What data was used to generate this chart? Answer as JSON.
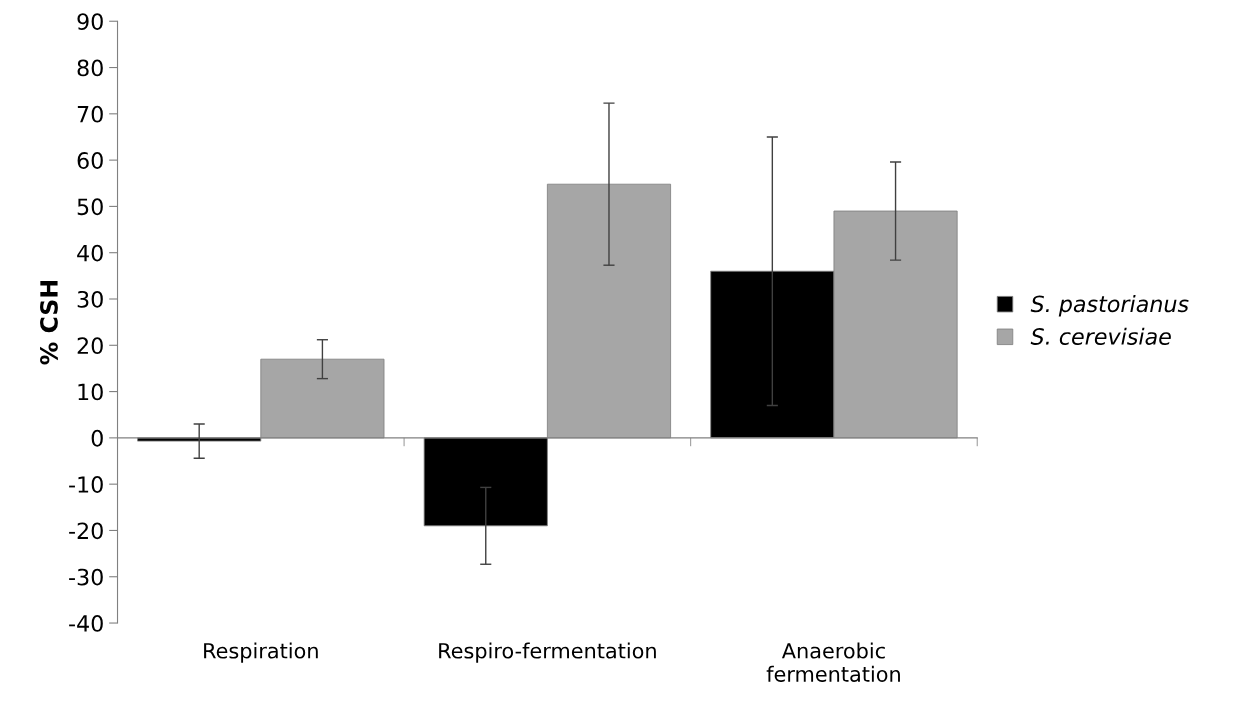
{
  "chart_data": {
    "type": "bar",
    "ylabel": "% CSH",
    "categories": [
      "Respiration",
      "Respiro-fermentation",
      "Anaerobic\nfermentation"
    ],
    "series": [
      {
        "name": "S. pastorianus",
        "color": "#000000",
        "values": [
          -0.7,
          -19,
          36
        ],
        "errors": [
          3.7,
          8.3,
          29
        ]
      },
      {
        "name": "S. cerevisiae",
        "color": "#a6a6a6",
        "values": [
          17,
          54.8,
          49
        ],
        "errors": [
          4.2,
          17.5,
          10.6
        ]
      }
    ],
    "ylim": [
      -40,
      90
    ],
    "yticks": [
      -40,
      -30,
      -20,
      -10,
      0,
      10,
      20,
      30,
      40,
      50,
      60,
      70,
      80,
      90
    ],
    "legend": "right"
  }
}
